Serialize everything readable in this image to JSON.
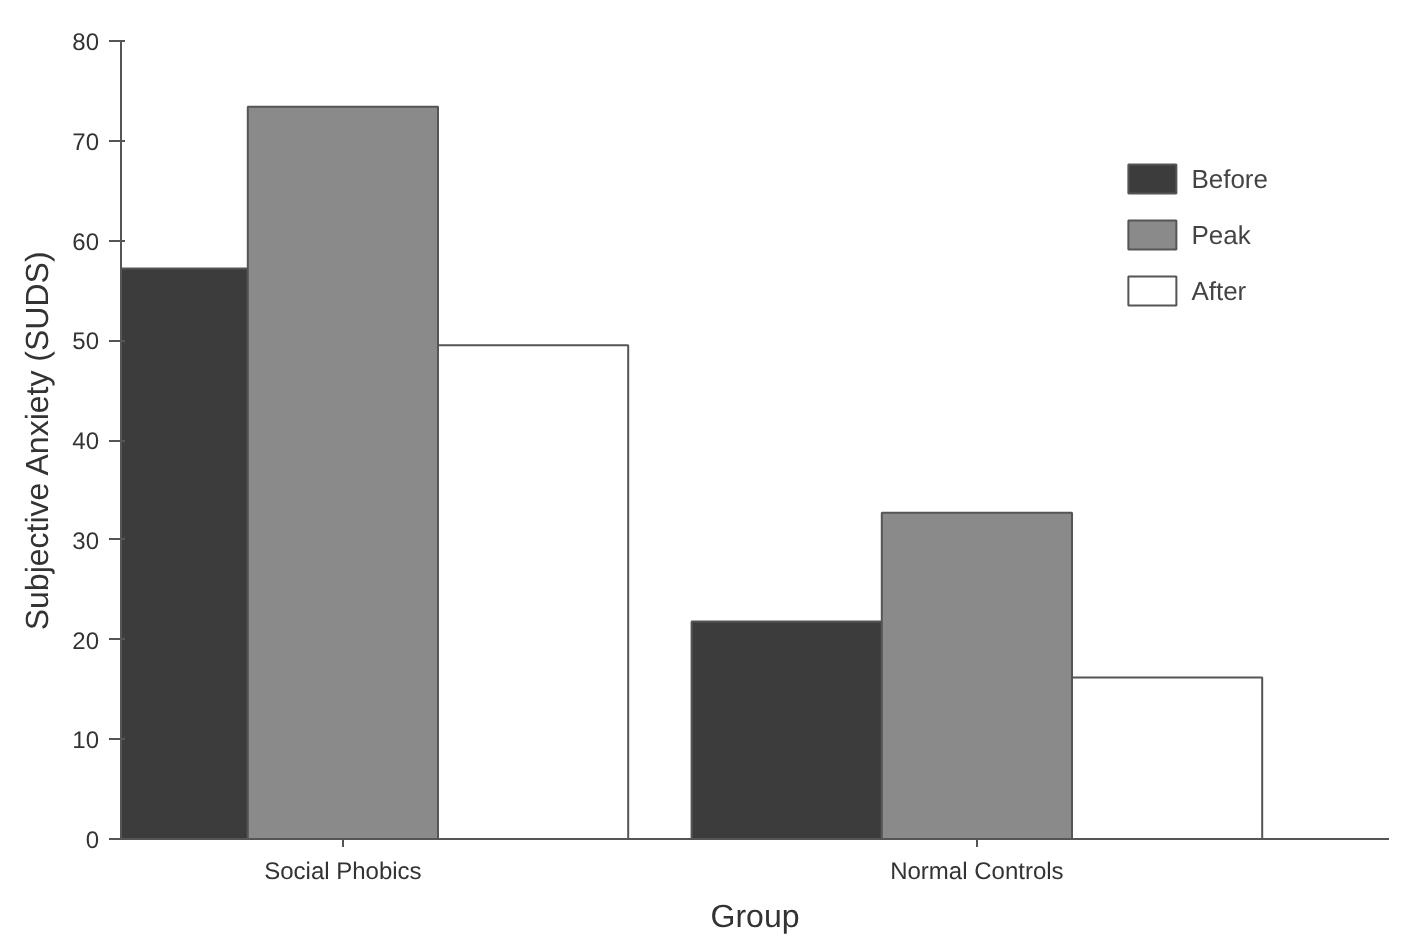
{
  "chart_data": {
    "type": "bar",
    "xlabel": "Group",
    "ylabel": "Subjective Anxiety (SUDS)",
    "categories": [
      "Social Phobics",
      "Normal Controls"
    ],
    "series": [
      {
        "name": "Before",
        "color": "#3c3c3c",
        "values": [
          57.2,
          21.8
        ]
      },
      {
        "name": "Peak",
        "color": "#8a8a8a",
        "values": [
          73.4,
          32.7
        ]
      },
      {
        "name": "After",
        "color": "#ffffff",
        "values": [
          49.5,
          16.2
        ]
      }
    ],
    "ylim": [
      0,
      80
    ],
    "yticks": [
      0,
      10,
      20,
      30,
      40,
      50,
      60,
      70,
      80
    ],
    "grid": false,
    "legend": "top right"
  }
}
